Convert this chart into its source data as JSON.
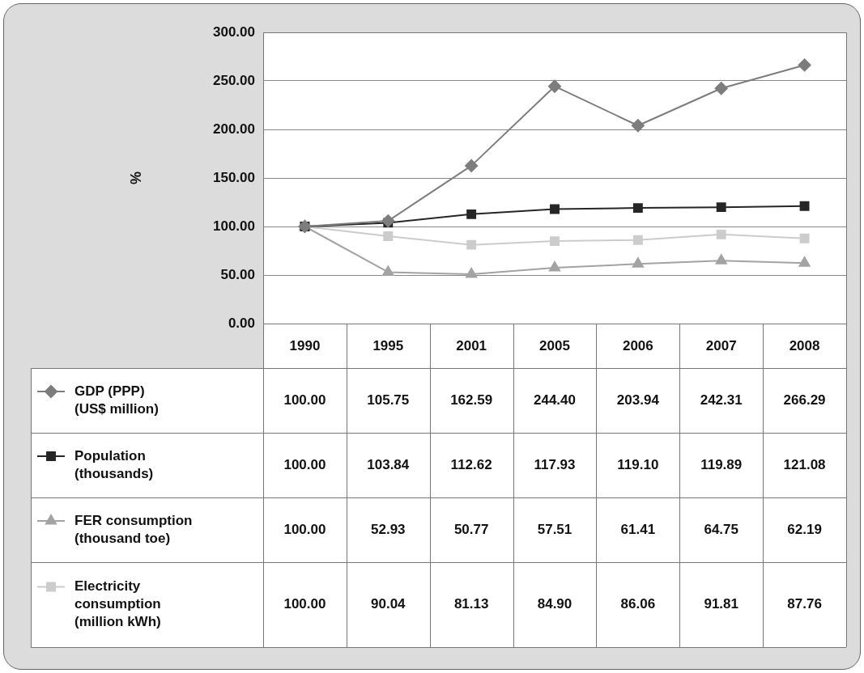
{
  "chart_data": {
    "type": "line",
    "ylabel": "%",
    "categories": [
      "1990",
      "1995",
      "2001",
      "2005",
      "2006",
      "2007",
      "2008"
    ],
    "ylim": [
      0,
      300
    ],
    "yticks": [
      {
        "value": 0,
        "label": "0.00"
      },
      {
        "value": 50,
        "label": "50.00"
      },
      {
        "value": 100,
        "label": "100.00"
      },
      {
        "value": 150,
        "label": "150.00"
      },
      {
        "value": 200,
        "label": "200.00"
      },
      {
        "value": 250,
        "label": "250.00"
      },
      {
        "value": 300,
        "label": "300.00"
      }
    ],
    "grid": "y",
    "legend": "bottom left",
    "data_labels": true,
    "series": [
      {
        "name": "GDP (PPP)\n(US$ million)",
        "color": "#7d7d7d",
        "marker": "diamond",
        "values": [
          100.0,
          105.75,
          162.59,
          244.4,
          203.94,
          242.31,
          266.29
        ],
        "value_labels": [
          "100.00",
          "105.75",
          "162.59",
          "244.40",
          "203.94",
          "242.31",
          "266.29"
        ]
      },
      {
        "name": "Population\n(thousands)",
        "color": "#262626",
        "marker": "square",
        "values": [
          100.0,
          103.84,
          112.62,
          117.93,
          119.1,
          119.89,
          121.08
        ],
        "value_labels": [
          "100.00",
          "103.84",
          "112.62",
          "117.93",
          "119.10",
          "119.89",
          "121.08"
        ]
      },
      {
        "name": "FER consumption\n(thousand toe)",
        "color": "#a3a3a3",
        "marker": "triangle",
        "values": [
          100.0,
          52.93,
          50.77,
          57.51,
          61.41,
          64.75,
          62.19
        ],
        "value_labels": [
          "100.00",
          "52.93",
          "50.77",
          "57.51",
          "61.41",
          "64.75",
          "62.19"
        ]
      },
      {
        "name": "Electricity\nconsumption\n(million kWh)",
        "color": "#cccccc",
        "marker": "square",
        "values": [
          100.0,
          90.04,
          81.13,
          84.9,
          86.06,
          91.81,
          87.76
        ],
        "value_labels": [
          "100.00",
          "90.04",
          "81.13",
          "84.90",
          "86.06",
          "91.81",
          "87.76"
        ]
      }
    ]
  }
}
